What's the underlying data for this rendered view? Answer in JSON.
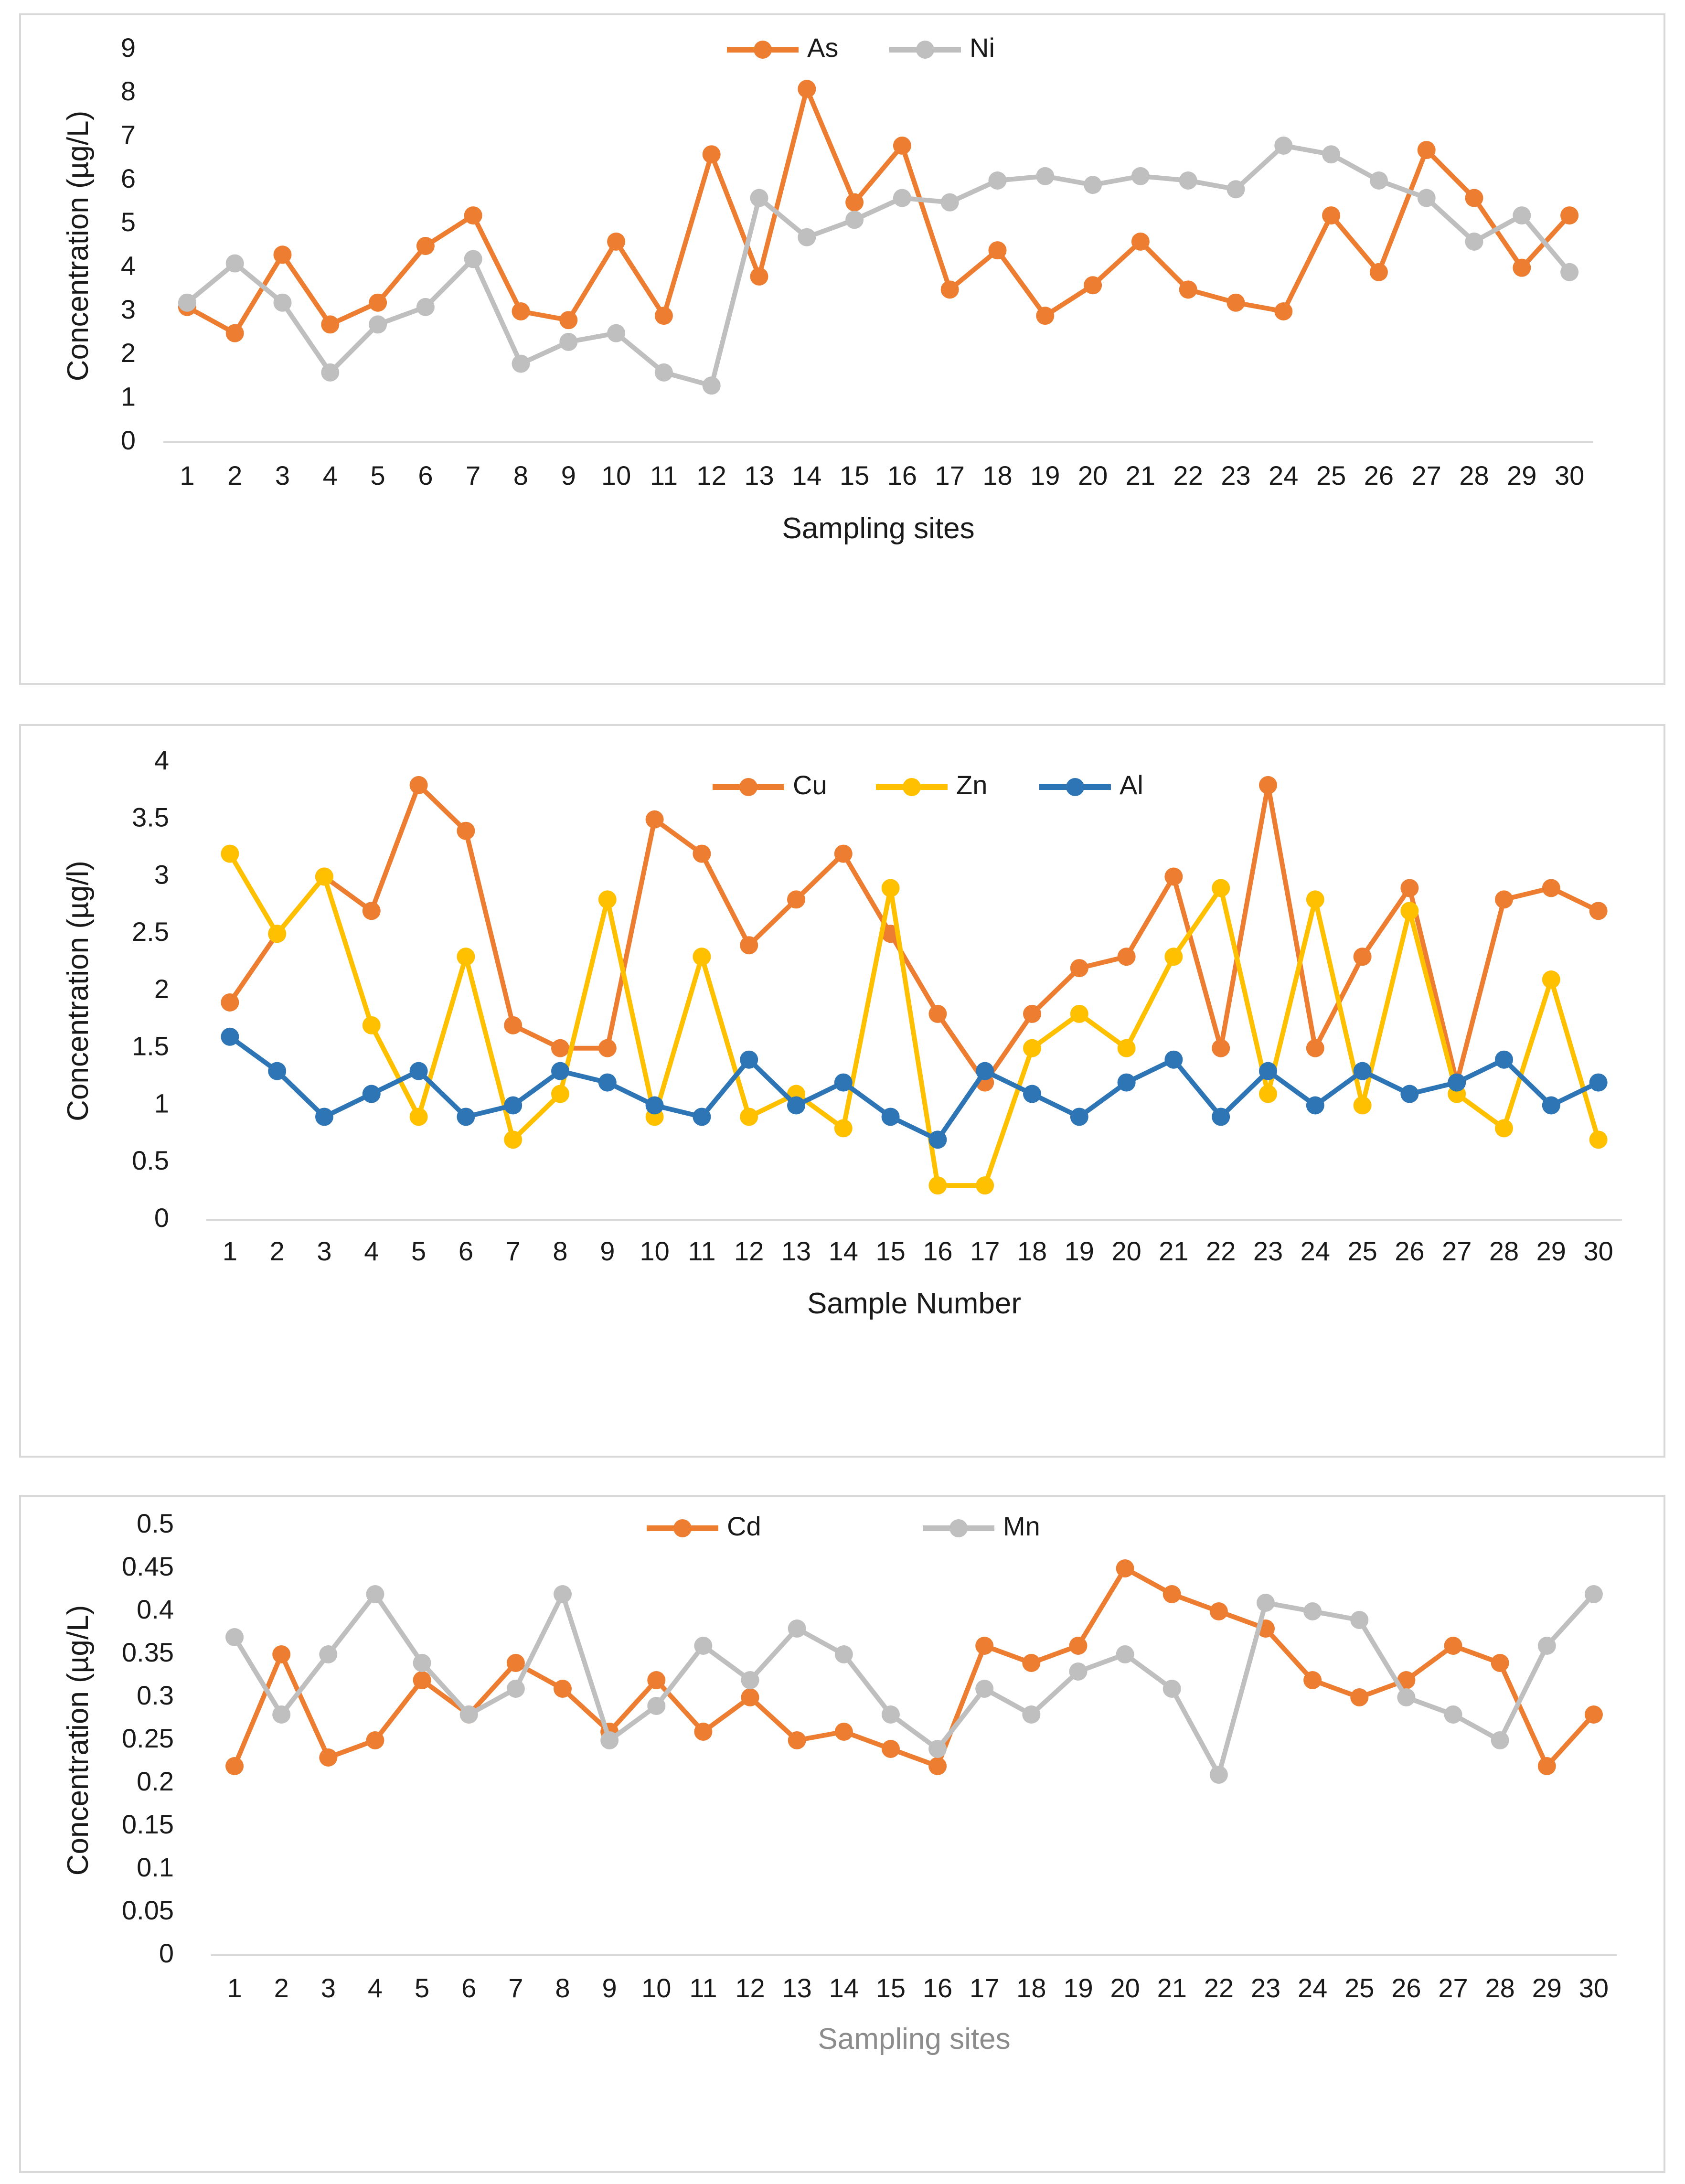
{
  "chart_data": [
    {
      "type": "line",
      "title": "",
      "xlabel": "Sampling sites",
      "ylabel": "Concentration (µg/L)",
      "ylim": [
        0,
        9
      ],
      "yticks": [
        "0",
        "1",
        "2",
        "3",
        "4",
        "5",
        "6",
        "7",
        "8",
        "9"
      ],
      "categories": [
        "1",
        "2",
        "3",
        "4",
        "5",
        "6",
        "7",
        "8",
        "9",
        "10",
        "11",
        "12",
        "13",
        "14",
        "15",
        "16",
        "17",
        "18",
        "19",
        "20",
        "21",
        "22",
        "23",
        "24",
        "25",
        "26",
        "27",
        "28",
        "29",
        "30"
      ],
      "legend_position": "top-center",
      "series": [
        {
          "name": "As",
          "color": "#ed7d31",
          "values": [
            3.1,
            2.5,
            4.3,
            2.7,
            3.2,
            4.5,
            5.2,
            3.0,
            2.8,
            4.6,
            2.9,
            6.6,
            3.8,
            8.1,
            5.5,
            6.8,
            3.5,
            4.4,
            2.9,
            3.6,
            4.6,
            3.5,
            3.2,
            3.0,
            5.2,
            3.9,
            6.7,
            5.6,
            4.0,
            5.2
          ]
        },
        {
          "name": "Ni",
          "color": "#bfbfbf",
          "values": [
            3.2,
            4.1,
            3.2,
            1.6,
            2.7,
            3.1,
            4.2,
            1.8,
            2.3,
            2.5,
            1.6,
            1.3,
            5.6,
            4.7,
            5.1,
            5.6,
            5.5,
            6.0,
            6.1,
            5.9,
            6.1,
            6.0,
            5.8,
            6.8,
            6.6,
            6.0,
            5.6,
            4.6,
            5.2,
            3.9
          ]
        }
      ]
    },
    {
      "type": "line",
      "title": "",
      "xlabel": "Sample Number",
      "ylabel": "Concentration (µg/l)",
      "ylim": [
        0,
        4
      ],
      "yticks": [
        "0",
        "0.5",
        "1",
        "1.5",
        "2",
        "2.5",
        "3",
        "3.5",
        "4"
      ],
      "categories": [
        "1",
        "2",
        "3",
        "4",
        "5",
        "6",
        "7",
        "8",
        "9",
        "10",
        "11",
        "12",
        "13",
        "14",
        "15",
        "16",
        "17",
        "18",
        "19",
        "20",
        "21",
        "22",
        "23",
        "24",
        "25",
        "26",
        "27",
        "28",
        "29",
        "30"
      ],
      "legend_position": "top-center",
      "series": [
        {
          "name": "Cu",
          "color": "#ed7d31",
          "values": [
            1.9,
            2.5,
            3.0,
            2.7,
            3.8,
            3.4,
            1.7,
            1.5,
            1.5,
            3.5,
            3.2,
            2.4,
            2.8,
            3.2,
            2.5,
            1.8,
            1.2,
            1.8,
            2.2,
            2.3,
            3.0,
            1.5,
            3.8,
            1.5,
            2.3,
            2.9,
            1.2,
            2.8,
            2.9,
            2.7
          ]
        },
        {
          "name": "Zn",
          "color": "#ffc000",
          "values": [
            3.2,
            2.5,
            3.0,
            1.7,
            0.9,
            2.3,
            0.7,
            1.1,
            2.8,
            0.9,
            2.3,
            0.9,
            1.1,
            0.8,
            2.9,
            0.3,
            0.3,
            1.5,
            1.8,
            1.5,
            2.3,
            2.9,
            1.1,
            2.8,
            1.0,
            2.7,
            1.1,
            0.8,
            2.1,
            0.7
          ]
        },
        {
          "name": "Al",
          "color": "#2e75b6",
          "values": [
            1.6,
            1.3,
            0.9,
            1.1,
            1.3,
            0.9,
            1.0,
            1.3,
            1.2,
            1.0,
            0.9,
            1.4,
            1.0,
            1.2,
            0.9,
            0.7,
            1.3,
            1.1,
            0.9,
            1.2,
            1.4,
            0.9,
            1.3,
            1.0,
            1.3,
            1.1,
            1.2,
            1.4,
            1.0,
            1.2
          ]
        }
      ]
    },
    {
      "type": "line",
      "title": "",
      "xlabel": "Sampling sites",
      "ylabel": "Concentration (µg/L)",
      "ylim": [
        0,
        0.5
      ],
      "yticks": [
        "0",
        "0.05",
        "0.1",
        "0.15",
        "0.2",
        "0.25",
        "0.3",
        "0.35",
        "0.4",
        "0.45",
        "0.5"
      ],
      "categories": [
        "1",
        "2",
        "3",
        "4",
        "5",
        "6",
        "7",
        "8",
        "9",
        "10",
        "11",
        "12",
        "13",
        "14",
        "15",
        "16",
        "17",
        "18",
        "19",
        "20",
        "21",
        "22",
        "23",
        "24",
        "25",
        "26",
        "27",
        "28",
        "29",
        "30"
      ],
      "legend_position": "top-center",
      "series": [
        {
          "name": "Cd",
          "color": "#ed7d31",
          "values": [
            0.22,
            0.35,
            0.23,
            0.25,
            0.32,
            0.28,
            0.34,
            0.31,
            0.26,
            0.32,
            0.26,
            0.3,
            0.25,
            0.26,
            0.24,
            0.22,
            0.36,
            0.34,
            0.36,
            0.45,
            0.42,
            0.4,
            0.38,
            0.32,
            0.3,
            0.32,
            0.36,
            0.34,
            0.22,
            0.28
          ]
        },
        {
          "name": "Mn",
          "color": "#bfbfbf",
          "values": [
            0.37,
            0.28,
            0.35,
            0.42,
            0.34,
            0.28,
            0.31,
            0.42,
            0.25,
            0.29,
            0.36,
            0.32,
            0.38,
            0.35,
            0.28,
            0.24,
            0.31,
            0.28,
            0.33,
            0.35,
            0.31,
            0.21,
            0.41,
            0.4,
            0.39,
            0.3,
            0.28,
            0.25,
            0.36,
            0.42
          ]
        }
      ]
    }
  ]
}
